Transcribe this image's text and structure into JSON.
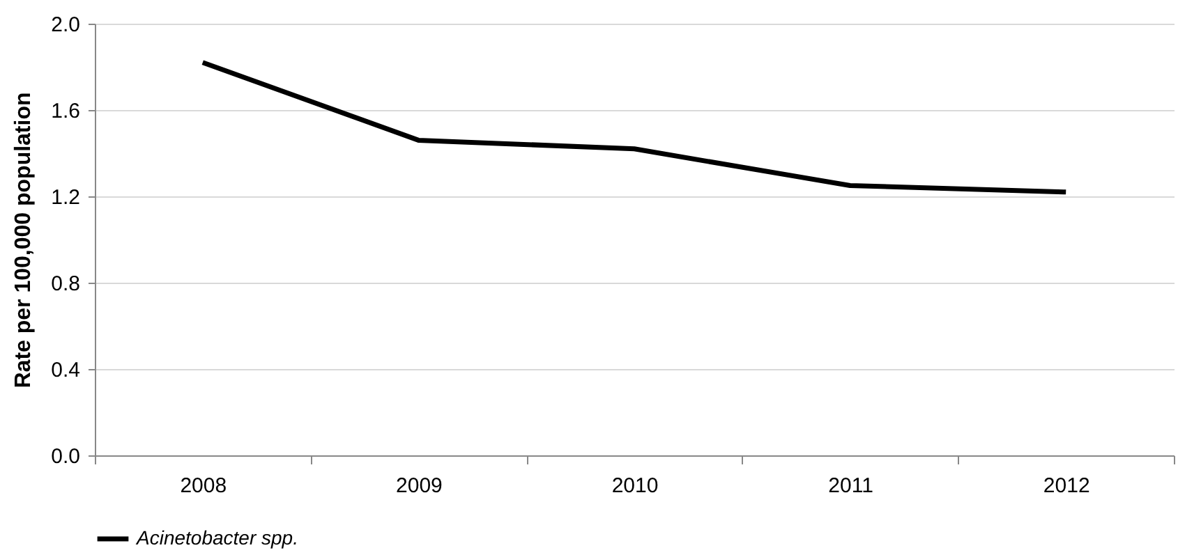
{
  "chart_data": {
    "type": "line",
    "ylabel": "Rate per 100,000 population",
    "categories": [
      "2008",
      "2009",
      "2010",
      "2011",
      "2012"
    ],
    "series": [
      {
        "name": "Acinetobacter spp.",
        "color": "#000000",
        "values": [
          1.82,
          1.46,
          1.42,
          1.25,
          1.22
        ]
      }
    ],
    "ylim": [
      0,
      2.0
    ],
    "yticks": [
      {
        "value": 0,
        "label": "0.0"
      },
      {
        "value": 0.4,
        "label": "0.4"
      },
      {
        "value": 0.8,
        "label": "0.8"
      },
      {
        "value": 1.2,
        "label": "1.2"
      },
      {
        "value": 1.6,
        "label": "1.6"
      },
      {
        "value": 2.0,
        "label": "2.0"
      }
    ],
    "grid": "y",
    "legend": "bottom",
    "marker": "none",
    "line_style": "solid"
  }
}
